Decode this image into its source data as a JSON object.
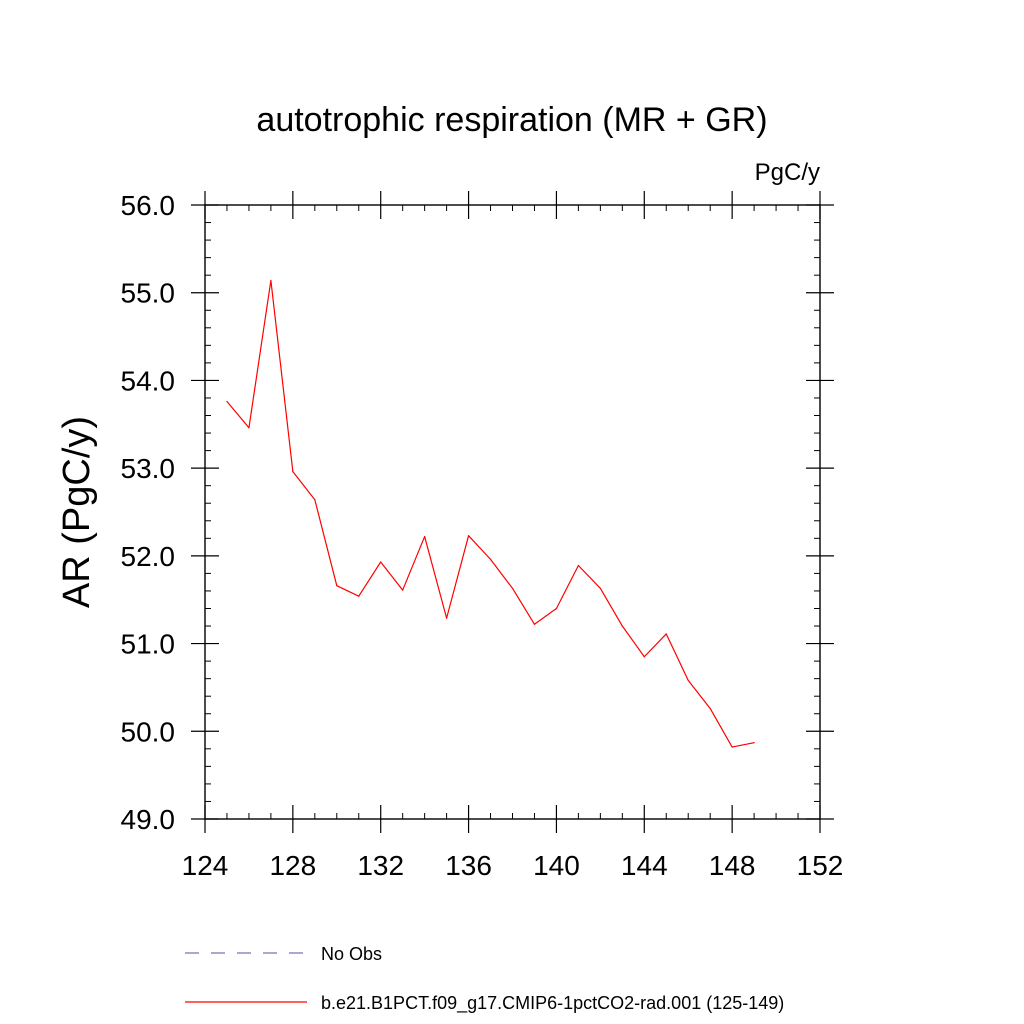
{
  "chart_data": {
    "type": "line",
    "title": "autotrophic respiration (MR + GR)",
    "units_label": "PgC/y",
    "xlabel": "",
    "ylabel": "AR  (PgC/y)",
    "xlim": [
      124,
      152
    ],
    "ylim": [
      49.0,
      56.0
    ],
    "x_ticks": [
      124,
      128,
      132,
      136,
      140,
      144,
      148,
      152
    ],
    "x_tick_labels": [
      "124",
      "128",
      "132",
      "136",
      "140",
      "144",
      "148",
      "152"
    ],
    "y_ticks": [
      49.0,
      50.0,
      51.0,
      52.0,
      53.0,
      54.0,
      55.0,
      56.0
    ],
    "y_tick_labels": [
      "49.0",
      "50.0",
      "51.0",
      "52.0",
      "53.0",
      "54.0",
      "55.0",
      "56.0"
    ],
    "grid": false,
    "legend_position": "bottom",
    "series": [
      {
        "name": "b.e21.B1PCT.f09_g17.CMIP6-1pctCO2-rad.001 (125-149)",
        "color": "#ff0000",
        "style": "solid",
        "x": [
          125,
          126,
          127,
          128,
          129,
          130,
          131,
          132,
          133,
          134,
          135,
          136,
          137,
          138,
          139,
          140,
          141,
          142,
          143,
          144,
          145,
          146,
          147,
          148,
          149
        ],
        "y": [
          53.76,
          53.46,
          55.14,
          52.96,
          52.64,
          51.66,
          51.54,
          51.93,
          51.61,
          52.22,
          51.29,
          52.23,
          51.96,
          51.63,
          51.22,
          51.4,
          51.89,
          51.63,
          51.2,
          50.85,
          51.11,
          50.58,
          50.26,
          49.82,
          49.87
        ]
      }
    ],
    "legend": [
      {
        "label": "No Obs",
        "color": "#7a70b8",
        "style": "dashed"
      },
      {
        "label": "b.e21.B1PCT.f09_g17.CMIP6-1pctCO2-rad.001 (125-149)",
        "color": "#ff0000",
        "style": "solid"
      }
    ]
  }
}
